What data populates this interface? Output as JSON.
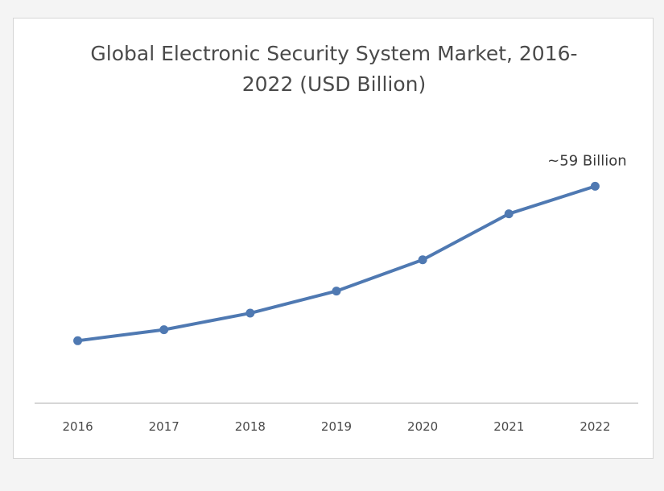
{
  "chart_data": {
    "type": "line",
    "title_line1": "Global Electronic Security System Market, 2016-",
    "title_line2": "2022 (USD Billion)",
    "xlabel": "",
    "ylabel": "",
    "categories": [
      "2016",
      "2017",
      "2018",
      "2019",
      "2020",
      "2021",
      "2022"
    ],
    "series": [
      {
        "values": [
          17,
          20,
          24.5,
          30.5,
          39,
          51.5,
          59
        ]
      }
    ],
    "ylim": [
      0,
      70
    ],
    "annotation": "~59 Billion",
    "grid": false,
    "legend": "none",
    "line_color": "#4f79b2",
    "axis_color": "#c9c9c9"
  }
}
